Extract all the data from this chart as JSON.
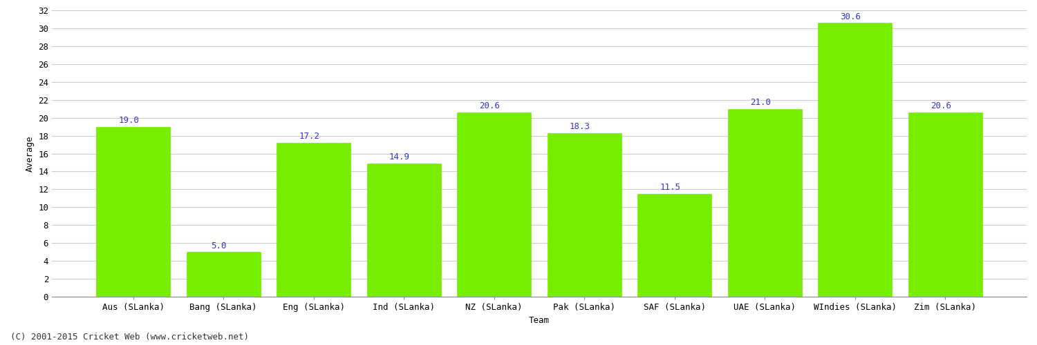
{
  "categories": [
    "Aus (SLanka)",
    "Bang (SLanka)",
    "Eng (SLanka)",
    "Ind (SLanka)",
    "NZ (SLanka)",
    "Pak (SLanka)",
    "SAF (SLanka)",
    "UAE (SLanka)",
    "WIndies (SLanka)",
    "Zim (SLanka)"
  ],
  "values": [
    19.0,
    5.0,
    17.2,
    14.9,
    20.6,
    18.3,
    11.5,
    21.0,
    30.6,
    20.6
  ],
  "bar_color": "#77EE00",
  "bar_edge_color": "#77EE00",
  "label_color": "#3333CC",
  "xlabel": "Team",
  "ylabel": "Average",
  "ylim": [
    0,
    32
  ],
  "yticks": [
    0,
    2,
    4,
    6,
    8,
    10,
    12,
    14,
    16,
    18,
    20,
    22,
    24,
    26,
    28,
    30,
    32
  ],
  "grid_color": "#CCCCCC",
  "background_color": "#FFFFFF",
  "footer_text": "(C) 2001-2015 Cricket Web (www.cricketweb.net)",
  "label_fontsize": 9,
  "axis_label_fontsize": 9,
  "tick_fontsize": 9,
  "footer_fontsize": 9,
  "bar_width": 0.82
}
